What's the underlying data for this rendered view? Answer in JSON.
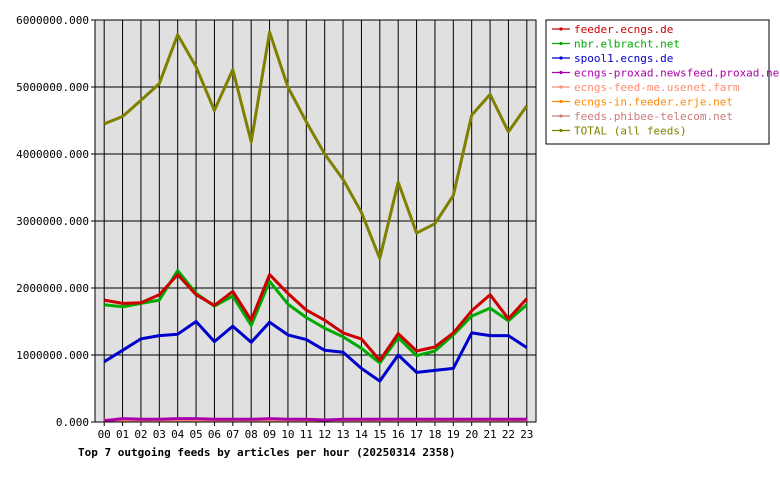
{
  "chart_data": {
    "type": "line",
    "title": "Top 7 outgoing feeds by articles per hour (20250314 2358)",
    "xlabel": "",
    "ylabel": "",
    "categories": [
      "00",
      "01",
      "02",
      "03",
      "04",
      "05",
      "06",
      "07",
      "08",
      "09",
      "10",
      "11",
      "12",
      "13",
      "14",
      "15",
      "16",
      "17",
      "18",
      "19",
      "20",
      "21",
      "22",
      "23"
    ],
    "yticks": [
      0,
      1000000,
      2000000,
      3000000,
      4000000,
      5000000,
      6000000
    ],
    "ytick_labels": [
      "0.000",
      "1000000.000",
      "2000000.000",
      "3000000.000",
      "4000000.000",
      "5000000.000",
      "6000000.000"
    ],
    "ylim": [
      0,
      6000000
    ],
    "grid": true,
    "legend_position": "right",
    "series": [
      {
        "name": "feeder.ecngs.de",
        "color": "#cc0000",
        "values": [
          1820000,
          1770000,
          1780000,
          1900000,
          2200000,
          1900000,
          1740000,
          1950000,
          1520000,
          2200000,
          1920000,
          1670000,
          1520000,
          1330000,
          1240000,
          920000,
          1320000,
          1060000,
          1120000,
          1330000,
          1660000,
          1900000,
          1540000,
          1840000
        ]
      },
      {
        "name": "nbr.elbracht.net",
        "color": "#00aa00",
        "values": [
          1750000,
          1720000,
          1770000,
          1820000,
          2260000,
          1920000,
          1730000,
          1880000,
          1440000,
          2100000,
          1760000,
          1560000,
          1400000,
          1270000,
          1100000,
          880000,
          1260000,
          990000,
          1060000,
          1300000,
          1580000,
          1700000,
          1510000,
          1750000
        ]
      },
      {
        "name": "spool1.ecngs.de",
        "color": "#0000cc",
        "values": [
          900000,
          1070000,
          1240000,
          1290000,
          1310000,
          1500000,
          1200000,
          1430000,
          1190000,
          1490000,
          1300000,
          1230000,
          1070000,
          1040000,
          800000,
          610000,
          1000000,
          740000,
          770000,
          800000,
          1330000,
          1290000,
          1290000,
          1110000
        ]
      },
      {
        "name": "ecngs-proxad.newsfeed.proxad.net",
        "color": "#aa00aa",
        "values": [
          20000,
          50000,
          40000,
          40000,
          50000,
          50000,
          40000,
          40000,
          40000,
          50000,
          40000,
          40000,
          30000,
          40000,
          40000,
          40000,
          40000,
          40000,
          40000,
          40000,
          40000,
          40000,
          40000,
          40000
        ]
      },
      {
        "name": "ecngs-feed-me.usenet.farm",
        "color": "#ff8c70",
        "values": [
          30000,
          30000,
          30000,
          30000,
          30000,
          30000,
          30000,
          30000,
          30000,
          30000,
          30000,
          30000,
          30000,
          30000,
          30000,
          30000,
          30000,
          30000,
          30000,
          30000,
          30000,
          30000,
          30000,
          30000
        ]
      },
      {
        "name": "ecngs-in.feeder.erje.net",
        "color": "#ff8800",
        "values": [
          20000,
          20000,
          20000,
          20000,
          20000,
          20000,
          20000,
          20000,
          20000,
          20000,
          20000,
          20000,
          20000,
          20000,
          20000,
          20000,
          20000,
          20000,
          20000,
          20000,
          20000,
          20000,
          20000,
          20000
        ]
      },
      {
        "name": "feeds.phibee-telecom.net",
        "color": "#cc7a7a",
        "values": [
          20000,
          20000,
          20000,
          20000,
          20000,
          20000,
          20000,
          20000,
          20000,
          20000,
          20000,
          20000,
          20000,
          20000,
          20000,
          20000,
          20000,
          20000,
          20000,
          20000,
          20000,
          20000,
          20000,
          20000
        ]
      },
      {
        "name": "TOTAL (all feeds)",
        "color": "#808000",
        "values": [
          4450000,
          4560000,
          4800000,
          5050000,
          5780000,
          5300000,
          4650000,
          5260000,
          4180000,
          5820000,
          5000000,
          4480000,
          4000000,
          3620000,
          3130000,
          2440000,
          3580000,
          2820000,
          2960000,
          3380000,
          4580000,
          4890000,
          4330000,
          4720000
        ]
      }
    ]
  }
}
